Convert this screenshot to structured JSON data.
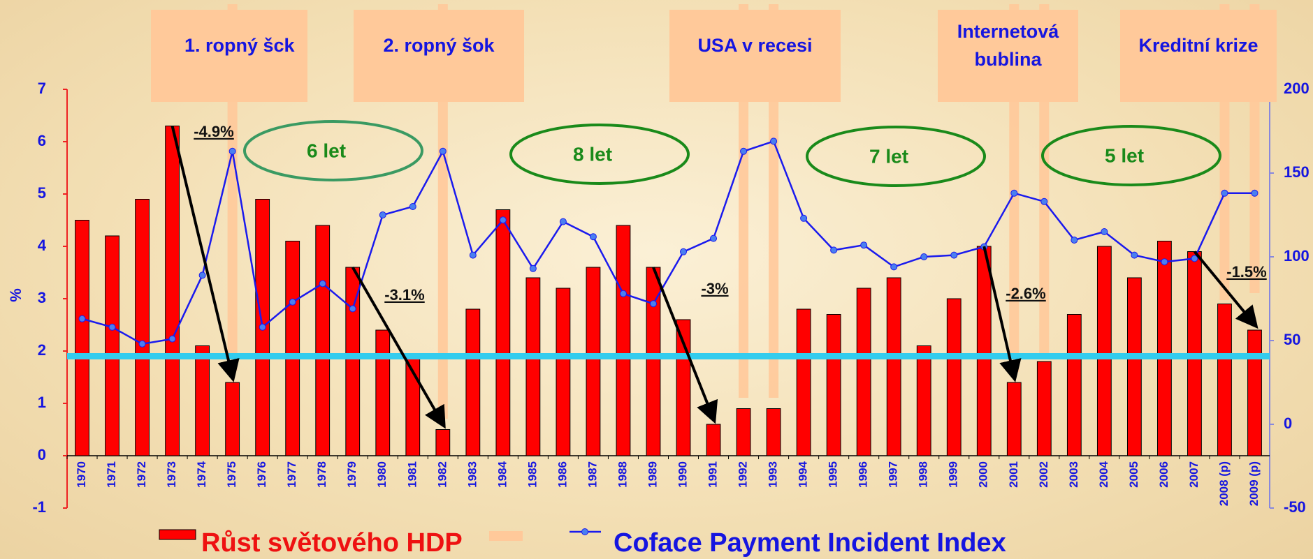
{
  "chart_data": {
    "type": "combo",
    "y_label": "%",
    "categories": [
      "1970",
      "1971",
      "1972",
      "1973",
      "1974",
      "1975",
      "1976",
      "1977",
      "1978",
      "1979",
      "1980",
      "1981",
      "1982",
      "1983",
      "1984",
      "1985",
      "1986",
      "1987",
      "1988",
      "1989",
      "1990",
      "1991",
      "1992",
      "1993",
      "1994",
      "1995",
      "1996",
      "1997",
      "1998",
      "1999",
      "2000",
      "2001",
      "2002",
      "2003",
      "2004",
      "2005",
      "2006",
      "2007",
      "2008 (p)",
      "2009 (p)"
    ],
    "series": [
      {
        "name": "Růst světového HDP",
        "type": "bar",
        "color": "#ff0000",
        "values": [
          4.5,
          4.2,
          4.9,
          6.3,
          2.1,
          1.4,
          4.9,
          4.1,
          4.4,
          3.6,
          2.4,
          1.9,
          0.5,
          2.8,
          4.7,
          3.4,
          3.2,
          3.6,
          4.4,
          3.6,
          2.6,
          0.6,
          0.9,
          0.9,
          2.8,
          2.7,
          3.2,
          3.4,
          2.1,
          3.0,
          4.0,
          1.4,
          1.8,
          2.7,
          4.0,
          3.4,
          4.1,
          3.9,
          2.9,
          2.4
        ]
      },
      {
        "name": "Coface Payment Incident Index",
        "type": "line",
        "axis": "y2",
        "color": "#1a1aee",
        "values": [
          63,
          58,
          48,
          51,
          89,
          163,
          58,
          73,
          84,
          69,
          125,
          130,
          163,
          101,
          122,
          93,
          121,
          112,
          78,
          72,
          103,
          111,
          163,
          169,
          123,
          104,
          107,
          94,
          100,
          101,
          106,
          138,
          133,
          110,
          115,
          101,
          97,
          99,
          138,
          138
        ]
      }
    ],
    "ylim": [
      -1,
      7
    ],
    "yticks": [
      -1,
      0,
      1,
      2,
      3,
      4,
      5,
      6,
      7
    ],
    "y2lim": [
      -50,
      200
    ],
    "y2ticks": [
      -50,
      0,
      50,
      100,
      150,
      200
    ],
    "reference_line": {
      "value": 1.9,
      "color": "#33ccee"
    },
    "events": [
      "1. ropný šck",
      "2. ropný šok",
      "USA v recesi",
      "Internetová bublina",
      "Kreditní krize"
    ],
    "cycles": [
      "6 let",
      "8 let",
      "7 let",
      "5 let"
    ],
    "drops": [
      "-4.9%",
      "-3.1%",
      "-3%",
      "-2.6%",
      "-1.5%"
    ]
  }
}
